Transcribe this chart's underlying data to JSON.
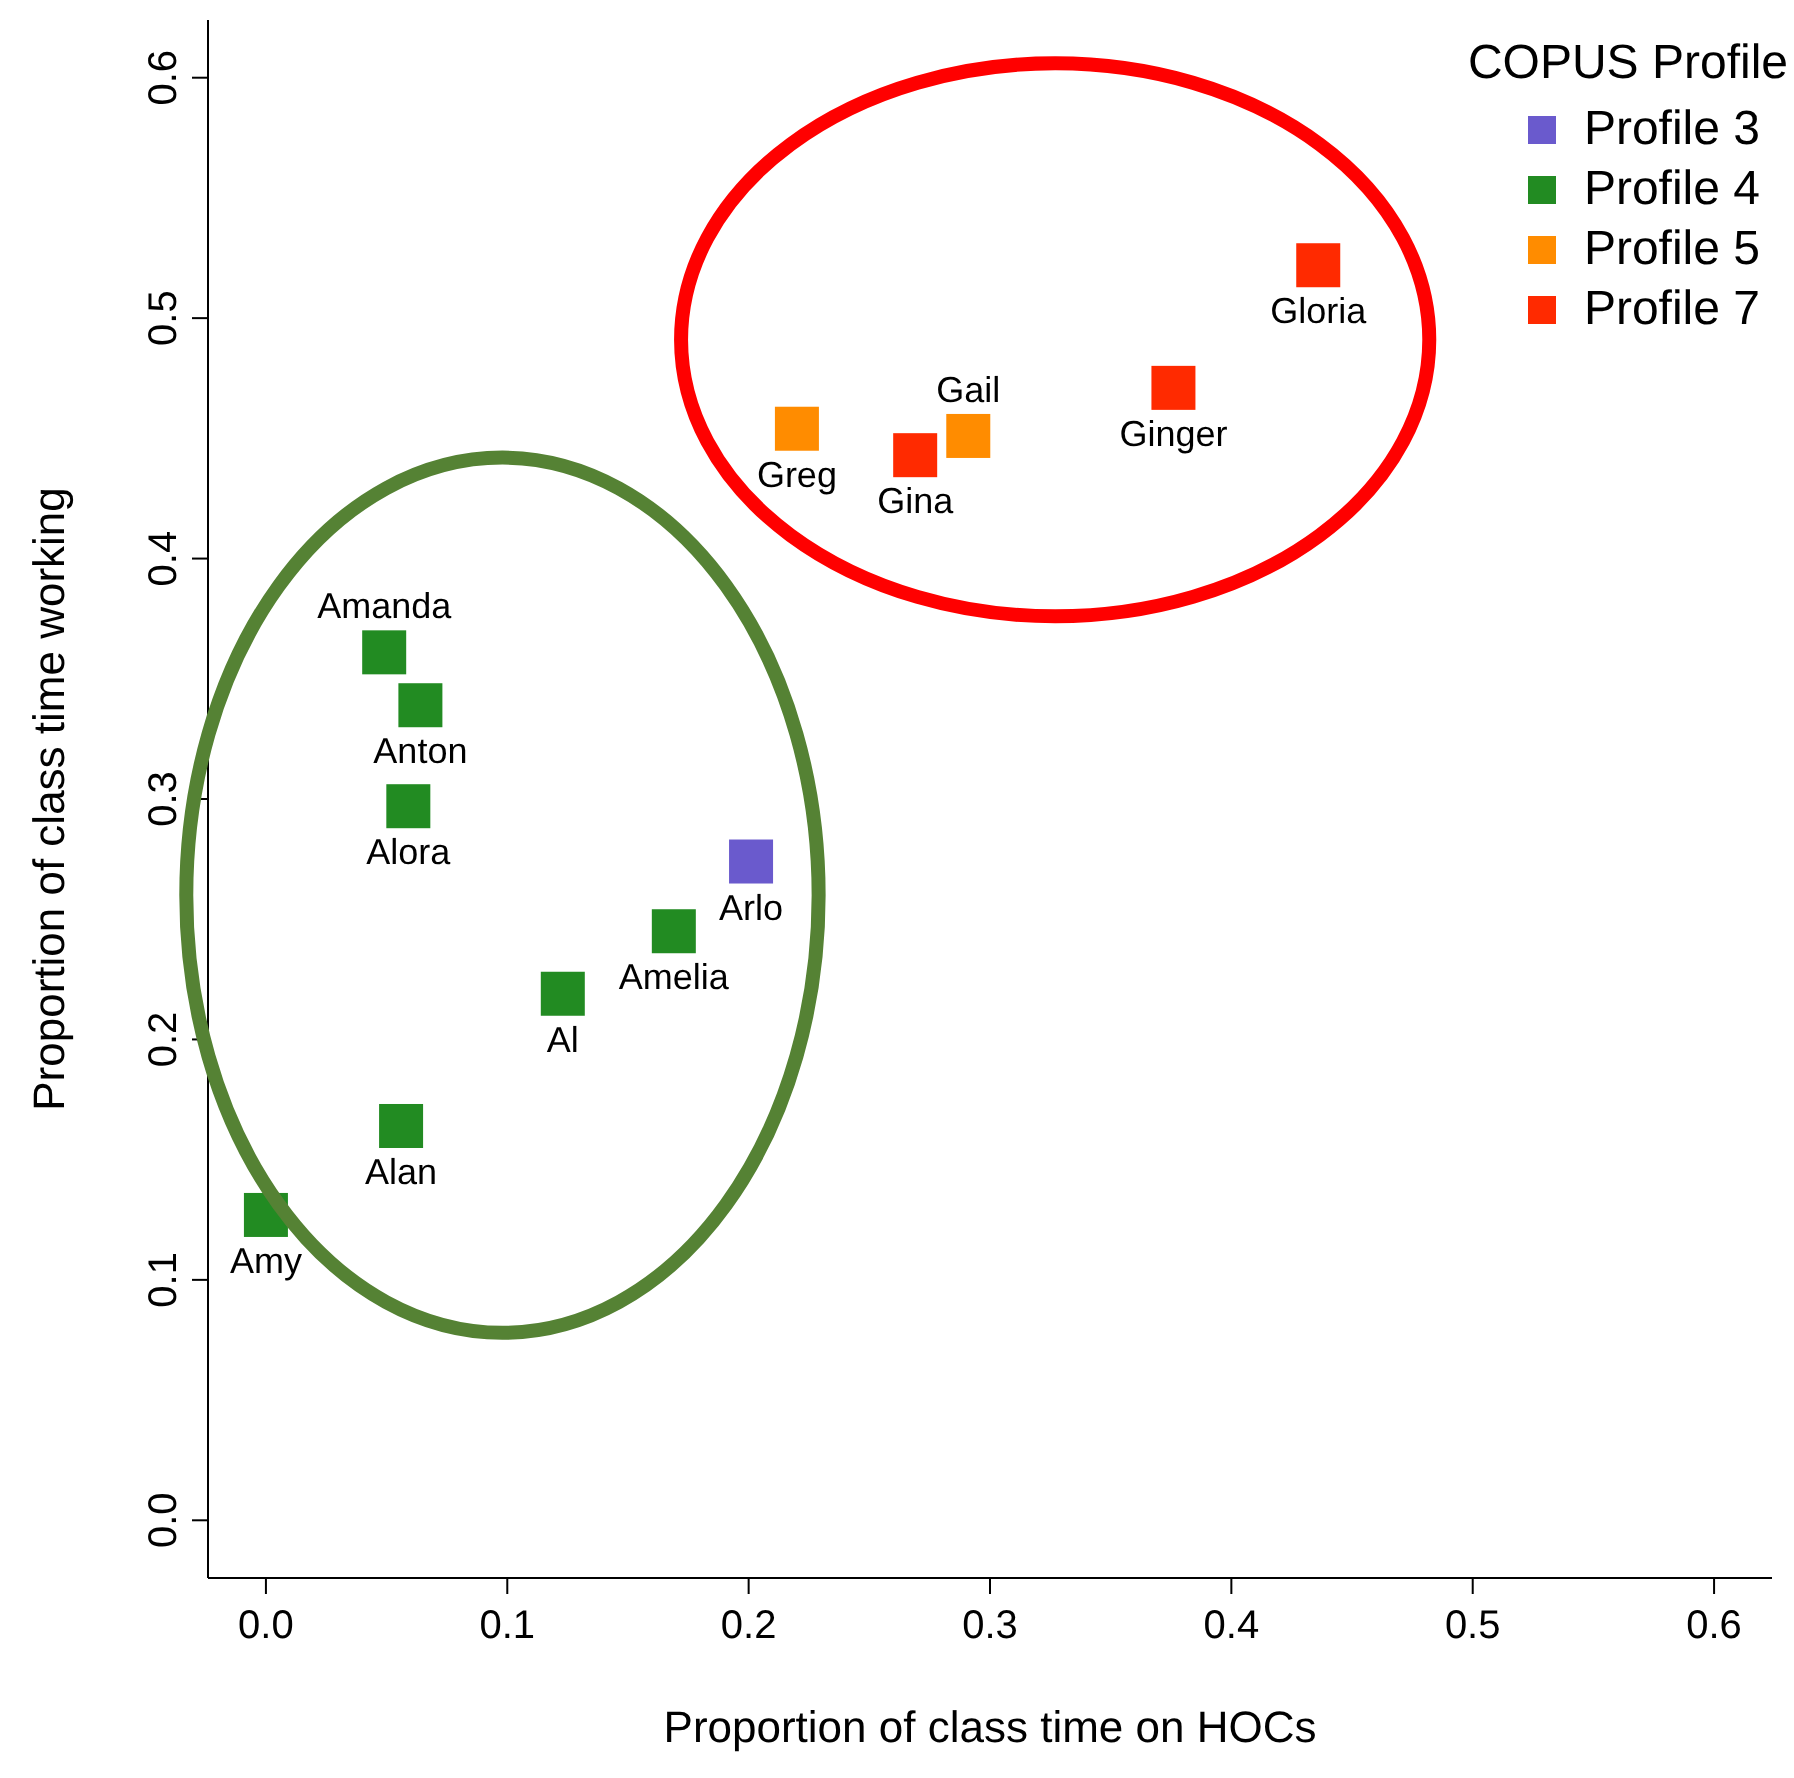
{
  "chart_data": {
    "type": "scatter",
    "xlabel": "Proportion of class time on HOCs",
    "ylabel": "Proportion of class time working",
    "legend_title": "COPUS Profile",
    "legend": "top right",
    "marker": "square",
    "xlim": [
      -0.024,
      0.624
    ],
    "ylim": [
      -0.024,
      0.624
    ],
    "xticks": [
      {
        "value": 0,
        "label": "0.0"
      },
      {
        "value": 0.1,
        "label": "0.1"
      },
      {
        "value": 0.2,
        "label": "0.2"
      },
      {
        "value": 0.3,
        "label": "0.3"
      },
      {
        "value": 0.4,
        "label": "0.4"
      },
      {
        "value": 0.5,
        "label": "0.5"
      },
      {
        "value": 0.6,
        "label": "0.6"
      }
    ],
    "yticks": [
      {
        "value": 0,
        "label": "0.0"
      },
      {
        "value": 0.1,
        "label": "0.1"
      },
      {
        "value": 0.2,
        "label": "0.2"
      },
      {
        "value": 0.3,
        "label": "0.3"
      },
      {
        "value": 0.4,
        "label": "0.4"
      },
      {
        "value": 0.5,
        "label": "0.5"
      },
      {
        "value": 0.6,
        "label": "0.6"
      }
    ],
    "series": [
      {
        "name": "Profile 3",
        "color": "#6a5acd",
        "x": [
          0.201
        ],
        "values": [
          0.274
        ]
      },
      {
        "name": "Profile 4",
        "color": "#228b22",
        "x": [
          0,
          0.056,
          0.123,
          0.169,
          0.059,
          0.064,
          0.049
        ],
        "values": [
          0.127,
          0.164,
          0.219,
          0.245,
          0.297,
          0.339,
          0.361
        ]
      },
      {
        "name": "Profile 5",
        "color": "#ff8c00",
        "x": [
          0.22,
          0.291
        ],
        "values": [
          0.454,
          0.451
        ]
      },
      {
        "name": "Profile 7",
        "color": "#ff2a00",
        "x": [
          0.269,
          0.376,
          0.436
        ],
        "values": [
          0.443,
          0.471,
          0.522
        ]
      }
    ],
    "annotations": [
      {
        "text": "Amy",
        "x": 0,
        "y": 0.127
      },
      {
        "text": "Alan",
        "x": 0.056,
        "y": 0.164
      },
      {
        "text": "Al",
        "x": 0.123,
        "y": 0.219
      },
      {
        "text": "Amelia",
        "x": 0.169,
        "y": 0.245
      },
      {
        "text": "Alora",
        "x": 0.059,
        "y": 0.297
      },
      {
        "text": "Anton",
        "x": 0.064,
        "y": 0.339
      },
      {
        "text": "Amanda",
        "x": 0.049,
        "y": 0.361
      },
      {
        "text": "Arlo",
        "x": 0.201,
        "y": 0.274
      },
      {
        "text": "Greg",
        "x": 0.22,
        "y": 0.454
      },
      {
        "text": "Gina",
        "x": 0.269,
        "y": 0.443
      },
      {
        "text": "Gail",
        "x": 0.291,
        "y": 0.451
      },
      {
        "text": "Ginger",
        "x": 0.376,
        "y": 0.471
      },
      {
        "text": "Gloria",
        "x": 0.436,
        "y": 0.522
      }
    ]
  }
}
